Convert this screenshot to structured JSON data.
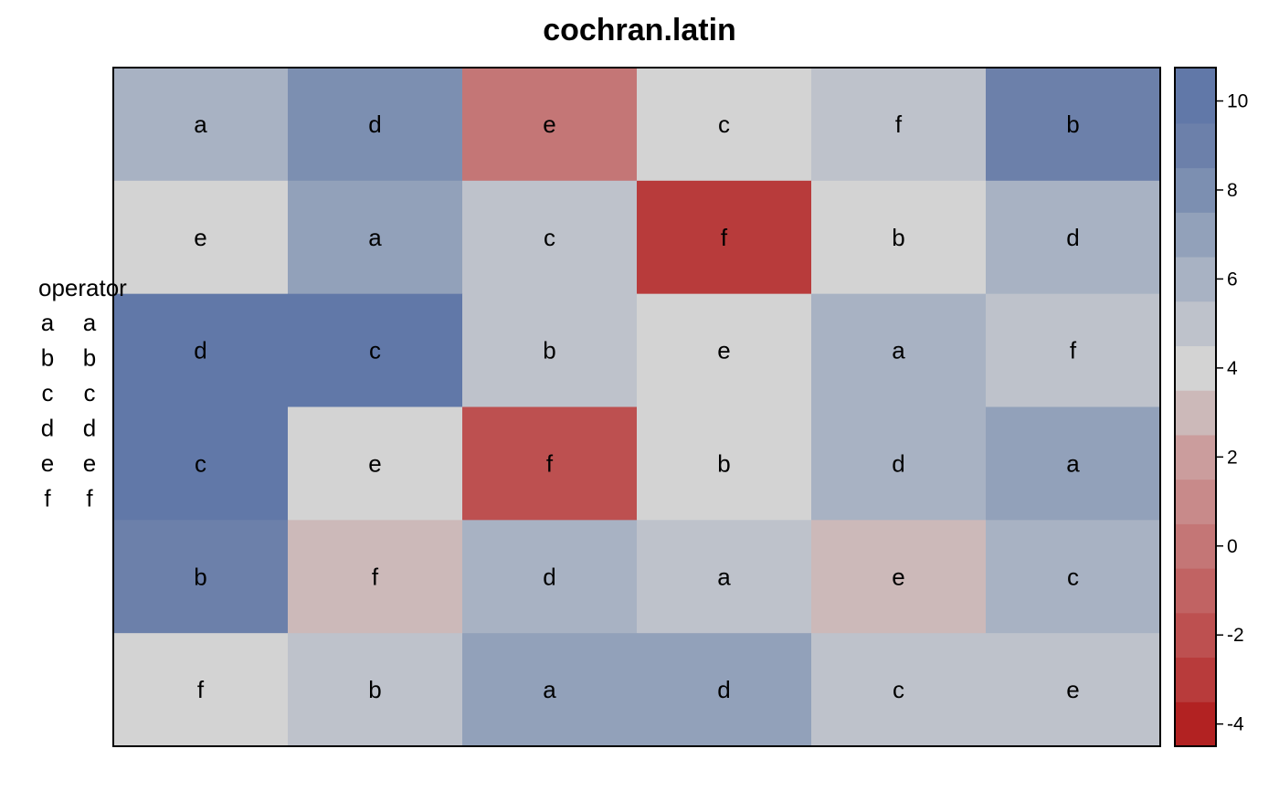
{
  "chart_data": {
    "type": "heatmap",
    "title": "cochran.latin",
    "rows": 6,
    "cols": 6,
    "letters": [
      [
        "a",
        "d",
        "e",
        "c",
        "f",
        "b"
      ],
      [
        "e",
        "a",
        "c",
        "f",
        "b",
        "d"
      ],
      [
        "d",
        "c",
        "b",
        "e",
        "a",
        "f"
      ],
      [
        "c",
        "e",
        "f",
        "b",
        "d",
        "a"
      ],
      [
        "b",
        "f",
        "d",
        "a",
        "e",
        "c"
      ],
      [
        "f",
        "b",
        "a",
        "d",
        "c",
        "e"
      ]
    ],
    "values": [
      [
        5.5,
        7.5,
        -0.5,
        3.5,
        4.5,
        8.5
      ],
      [
        3.5,
        6.5,
        4.5,
        -3.5,
        3.5,
        5.5
      ],
      [
        10.0,
        10.0,
        4.5,
        3.5,
        5.5,
        4.5
      ],
      [
        10.0,
        3.5,
        -2.5,
        3.5,
        5.5,
        6.5
      ],
      [
        8.5,
        2.5,
        5.5,
        4.5,
        2.5,
        5.5
      ],
      [
        3.5,
        4.5,
        6.5,
        6.5,
        4.5,
        4.5
      ]
    ],
    "colorbar": {
      "min": -4.5,
      "max": 10.75,
      "breaks": [
        -4.5,
        -3.5,
        -2.5,
        -1.5,
        -0.5,
        0.5,
        1.5,
        2.5,
        3.5,
        4.5,
        5.5,
        6.5,
        7.5,
        8.5,
        9.5,
        10.75
      ],
      "colors": [
        "#b22222",
        "#b83b3b",
        "#bd5050",
        "#c16363",
        "#c47676",
        "#c88a8a",
        "#cb9d9d",
        "#ccb9b9",
        "#d3d3d3",
        "#bec2cb",
        "#a8b2c3",
        "#92a1ba",
        "#7c8fb1",
        "#6c80aa",
        "#6178a8"
      ],
      "ticks": [
        -4,
        -2,
        0,
        2,
        4,
        6,
        8,
        10
      ]
    },
    "legend": {
      "title": "operator",
      "col1": [
        "a",
        "b",
        "c",
        "d",
        "e",
        "f"
      ],
      "col2": [
        "a",
        "b",
        "c",
        "d",
        "e",
        "f"
      ],
      "placement": "left"
    }
  }
}
